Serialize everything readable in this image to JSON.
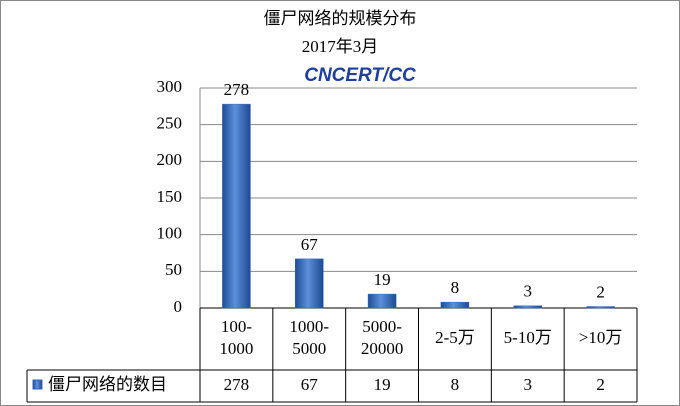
{
  "chart_data": {
    "type": "bar",
    "title": "僵尸网络的规模分布",
    "subtitle": "2017年3月",
    "logo": "CNCERT/CC",
    "categories": [
      "100-1000",
      "1000-5000",
      "5000-20000",
      "2-5万",
      "5-10万",
      ">10万"
    ],
    "series": [
      {
        "name": "僵尸网络的数目",
        "color": "#3366bb",
        "values": [
          278,
          67,
          19,
          8,
          3,
          2
        ]
      }
    ],
    "ylim": [
      0,
      300
    ],
    "yticks": [
      0,
      50,
      100,
      150,
      200,
      250,
      300
    ],
    "grid": true,
    "data_table": true
  }
}
